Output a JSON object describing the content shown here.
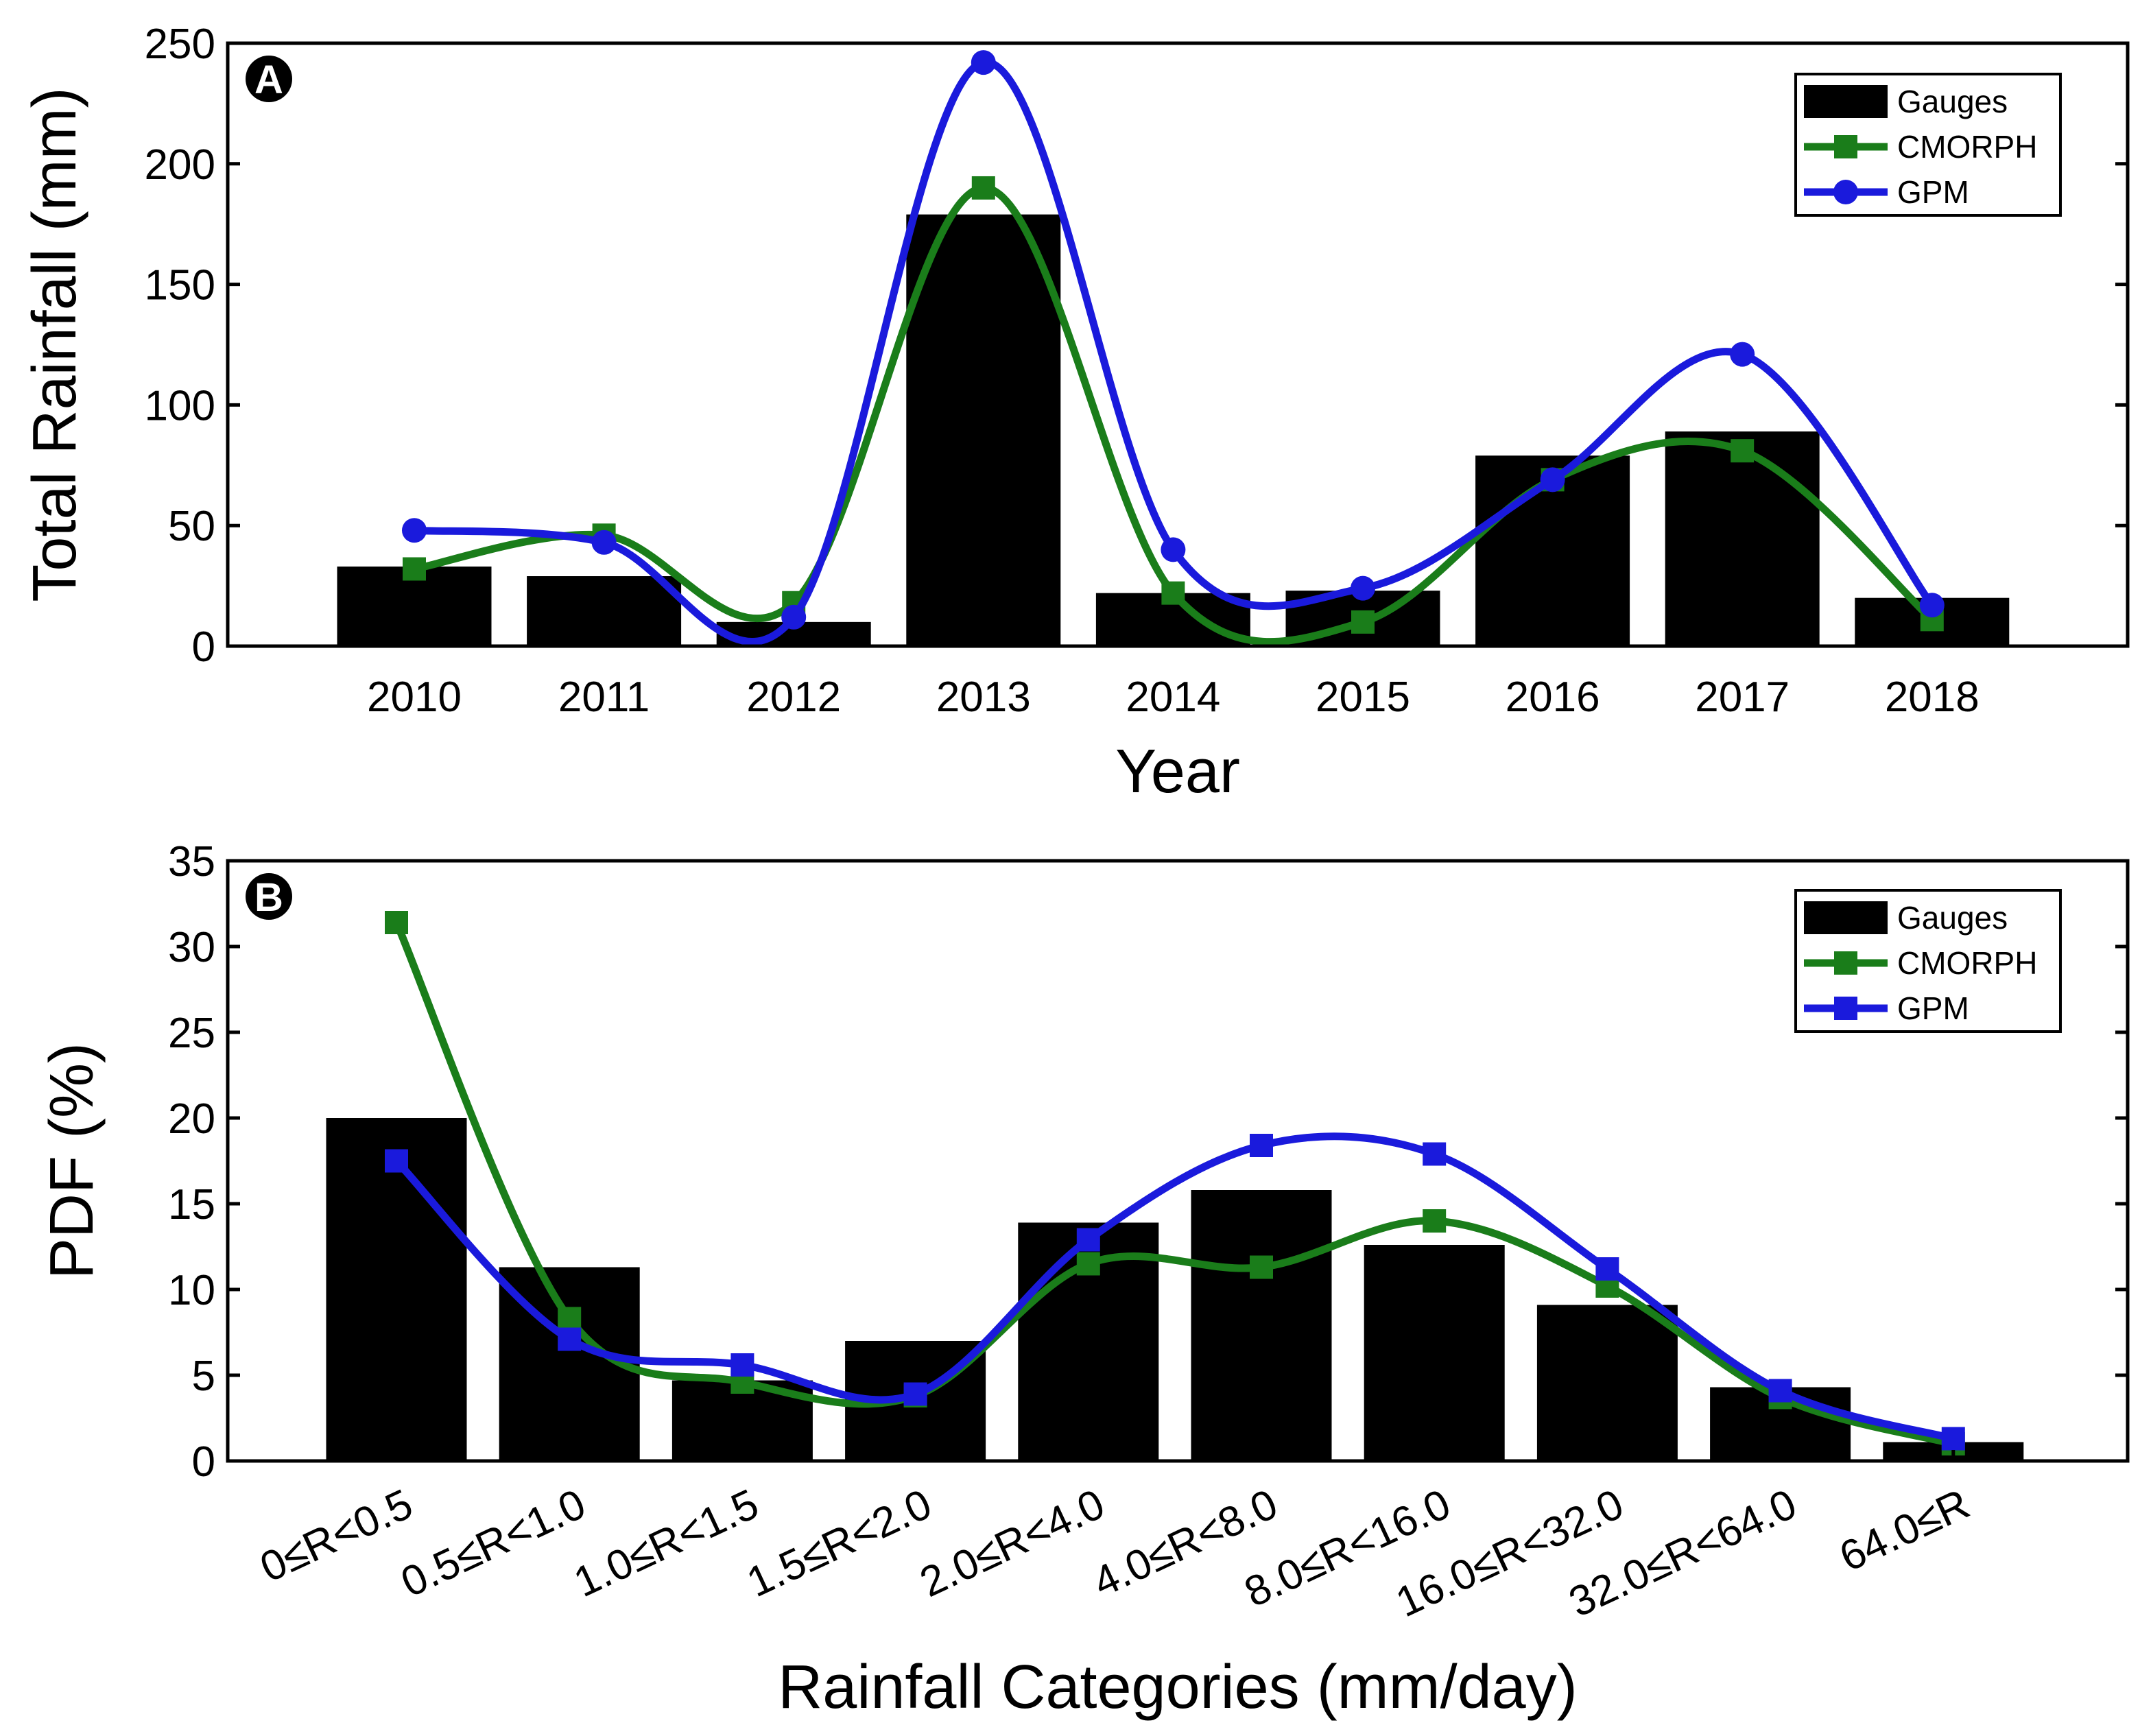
{
  "chart_data": [
    {
      "type": "bar",
      "panel_label": "A",
      "title": "",
      "xlabel": "Year",
      "ylabel": "Total Rainfall (mm)",
      "ylim": [
        0,
        250
      ],
      "yticks": [
        0,
        50,
        100,
        150,
        200,
        250
      ],
      "categories": [
        "2010",
        "2011",
        "2012",
        "2013",
        "2014",
        "2015",
        "2016",
        "2017",
        "2018"
      ],
      "legend_position": "top-right",
      "series": [
        {
          "name": "Gauges",
          "kind": "bar",
          "color": "#000000",
          "values": [
            33,
            29,
            10,
            179,
            22,
            23,
            79,
            89,
            20
          ]
        },
        {
          "name": "CMORPH",
          "kind": "line",
          "marker": "square",
          "color": "#1a7d1a",
          "values": [
            32,
            46,
            18,
            190,
            22,
            10,
            69,
            81,
            11
          ]
        },
        {
          "name": "GPM",
          "kind": "line",
          "marker": "circle",
          "color": "#1a1adc",
          "values": [
            48,
            43,
            12,
            242,
            40,
            24,
            69,
            121,
            17
          ]
        }
      ]
    },
    {
      "type": "bar",
      "panel_label": "B",
      "title": "",
      "xlabel": "Rainfall Categories (mm/day)",
      "ylabel": "PDF (%)",
      "ylim": [
        0,
        35
      ],
      "yticks": [
        0,
        5,
        10,
        15,
        20,
        25,
        30,
        35
      ],
      "categories": [
        "0≤R<0.5",
        "0.5≤R<1.0",
        "1.0≤R<1.5",
        "1.5≤R<2.0",
        "2.0≤R<4.0",
        "4.0≤R<8.0",
        "8.0≤R<16.0",
        "16.0≤R<32.0",
        "32.0≤R<64.0",
        "64.0≤R"
      ],
      "legend_position": "top-right",
      "series": [
        {
          "name": "Gauges",
          "kind": "bar",
          "color": "#000000",
          "values": [
            20.0,
            11.3,
            4.7,
            7.0,
            13.9,
            15.8,
            12.6,
            9.1,
            4.3,
            1.1
          ]
        },
        {
          "name": "CMORPH",
          "kind": "line",
          "marker": "square",
          "color": "#1a7d1a",
          "values": [
            31.4,
            8.3,
            4.6,
            3.8,
            11.5,
            11.3,
            14.0,
            10.2,
            3.7,
            1.0
          ]
        },
        {
          "name": "GPM",
          "kind": "line",
          "marker": "square",
          "color": "#1a1adc",
          "values": [
            17.5,
            7.1,
            5.6,
            3.9,
            12.9,
            18.4,
            17.9,
            11.2,
            4.1,
            1.3
          ]
        }
      ]
    }
  ]
}
